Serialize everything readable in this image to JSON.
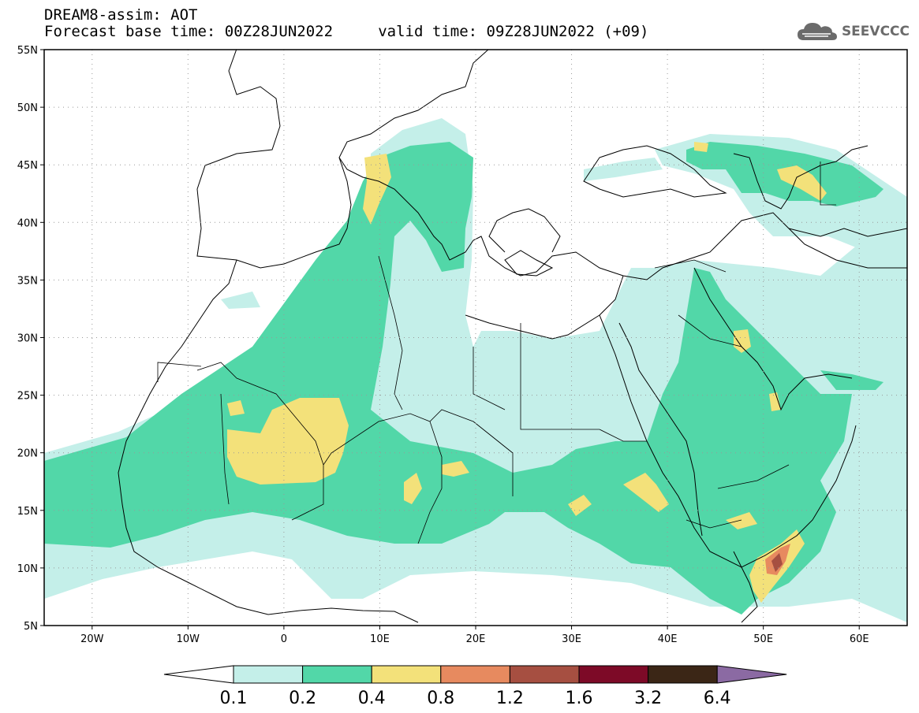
{
  "header": {
    "title_line1": "DREAM8-assim: AOT",
    "title_line2": "Forecast base time: 00Z28JUN2022     valid time: 09Z28JUN2022 (+09)",
    "logo_text": "SEEVCCC"
  },
  "map": {
    "lon_range": [
      -25,
      65
    ],
    "lat_range": [
      5,
      55
    ],
    "lat_ticks": [
      {
        "value": 55,
        "label": "55N"
      },
      {
        "value": 50,
        "label": "50N"
      },
      {
        "value": 45,
        "label": "45N"
      },
      {
        "value": 40,
        "label": "40N"
      },
      {
        "value": 35,
        "label": "35N"
      },
      {
        "value": 30,
        "label": "30N"
      },
      {
        "value": 25,
        "label": "25N"
      },
      {
        "value": 20,
        "label": "20N"
      },
      {
        "value": 15,
        "label": "15N"
      },
      {
        "value": 10,
        "label": "10N"
      },
      {
        "value": 5,
        "label": "5N"
      }
    ],
    "lon_ticks": [
      {
        "value": -20,
        "label": "20W"
      },
      {
        "value": -10,
        "label": "10W"
      },
      {
        "value": 0,
        "label": "0"
      },
      {
        "value": 10,
        "label": "10E"
      },
      {
        "value": 20,
        "label": "20E"
      },
      {
        "value": 30,
        "label": "30E"
      },
      {
        "value": 40,
        "label": "40E"
      },
      {
        "value": 50,
        "label": "50E"
      },
      {
        "value": 60,
        "label": "60E"
      }
    ]
  },
  "colorbar": {
    "labels": [
      "0.1",
      "0.2",
      "0.4",
      "0.8",
      "1.2",
      "1.6",
      "3.2",
      "6.4"
    ],
    "colors": [
      "#c4efe9",
      "#52d7a8",
      "#f3e17a",
      "#e78a5f",
      "#a64f41",
      "#7d0a27",
      "#3b2616"
    ],
    "low_arrow_color": "#ffffff",
    "high_arrow_color": "#8b6aa3"
  },
  "colors": {
    "level_0_1": "#c4efe9",
    "level_0_2": "#52d7a8",
    "level_0_4": "#f3e17a",
    "level_0_8": "#e78a5f",
    "level_1_2": "#a64f41"
  }
}
